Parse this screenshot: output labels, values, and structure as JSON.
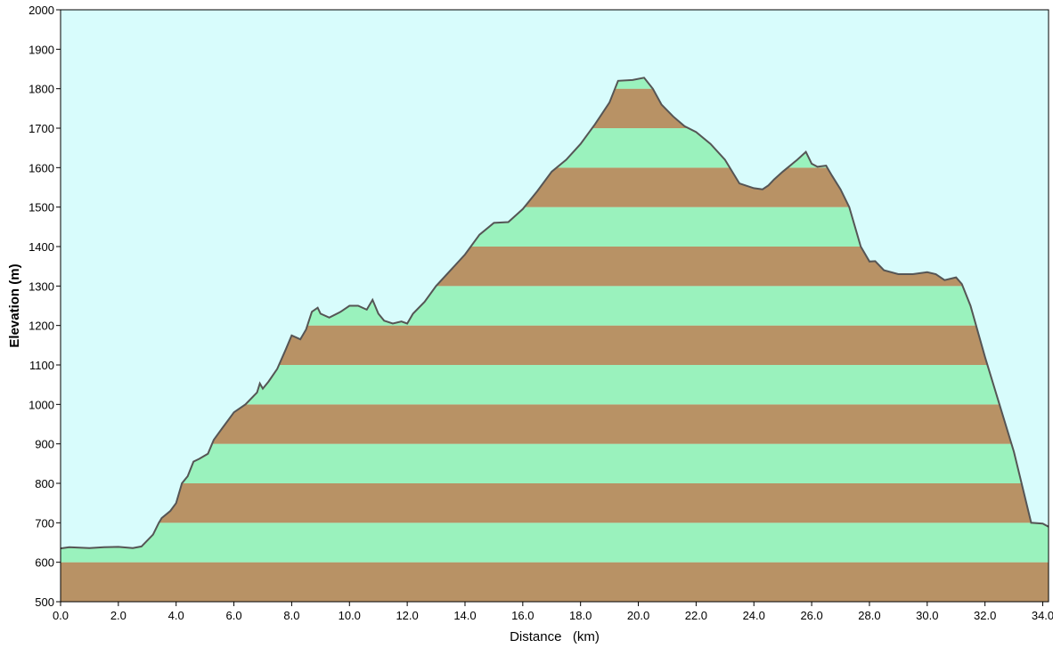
{
  "chart_data": {
    "type": "area",
    "title": "",
    "xlabel": "Distance   (km)",
    "ylabel": "Elevation (m)",
    "xlim": [
      0,
      34.2
    ],
    "ylim": [
      500,
      2000
    ],
    "x_ticks": [
      "0.0",
      "2.0",
      "4.0",
      "6.0",
      "8.0",
      "10.0",
      "12.0",
      "14.0",
      "16.0",
      "18.0",
      "20.0",
      "22.0",
      "24.0",
      "26.0",
      "28.0",
      "30.0",
      "32.0",
      "34.0"
    ],
    "y_ticks": [
      "500",
      "600",
      "700",
      "800",
      "900",
      "1000",
      "1100",
      "1200",
      "1300",
      "1400",
      "1500",
      "1600",
      "1700",
      "1800",
      "1900",
      "2000"
    ],
    "grid": false,
    "colors": {
      "sky": "#d8fcfc",
      "band_brown": "#b89265",
      "band_green": "#9af2bd",
      "profile_line": "#555555"
    },
    "band_size_m": 100,
    "profile": {
      "name": "",
      "x": [
        0,
        0.3,
        1.0,
        1.5,
        2.0,
        2.5,
        2.8,
        3.2,
        3.4,
        3.5,
        3.8,
        4.0,
        4.2,
        4.4,
        4.6,
        4.8,
        5.1,
        5.3,
        5.6,
        6.0,
        6.4,
        6.8,
        6.9,
        7.0,
        7.2,
        7.5,
        7.8,
        8.0,
        8.3,
        8.5,
        8.7,
        8.9,
        9.0,
        9.3,
        9.7,
        10.0,
        10.3,
        10.6,
        10.8,
        11.0,
        11.2,
        11.5,
        11.8,
        12.0,
        12.2,
        12.6,
        13.0,
        13.5,
        14.0,
        14.5,
        15.0,
        15.5,
        16.0,
        16.5,
        17.0,
        17.5,
        18.0,
        18.5,
        19.0,
        19.3,
        19.8,
        20.2,
        20.5,
        20.8,
        21.2,
        21.6,
        22.0,
        22.5,
        23.0,
        23.5,
        24.0,
        24.3,
        24.5,
        24.7,
        25.0,
        25.5,
        25.8,
        26.0,
        26.2,
        26.5,
        26.7,
        27.0,
        27.3,
        27.7,
        28.0,
        28.2,
        28.5,
        29.0,
        29.5,
        30.0,
        30.3,
        30.6,
        31.0,
        31.2,
        31.5,
        32.0,
        32.5,
        33.0,
        33.6,
        34.0,
        34.2
      ],
      "y": [
        635,
        638,
        636,
        638,
        639,
        636,
        640,
        670,
        700,
        712,
        730,
        750,
        800,
        818,
        855,
        862,
        875,
        910,
        940,
        980,
        1000,
        1030,
        1053,
        1040,
        1058,
        1090,
        1140,
        1175,
        1165,
        1190,
        1235,
        1245,
        1230,
        1220,
        1235,
        1250,
        1250,
        1240,
        1265,
        1230,
        1212,
        1205,
        1210,
        1205,
        1230,
        1260,
        1300,
        1340,
        1380,
        1430,
        1460,
        1462,
        1495,
        1540,
        1590,
        1620,
        1660,
        1710,
        1765,
        1820,
        1822,
        1828,
        1800,
        1760,
        1730,
        1705,
        1690,
        1660,
        1620,
        1560,
        1548,
        1545,
        1555,
        1570,
        1590,
        1620,
        1640,
        1610,
        1602,
        1605,
        1580,
        1545,
        1500,
        1400,
        1362,
        1363,
        1340,
        1330,
        1330,
        1335,
        1330,
        1315,
        1322,
        1305,
        1250,
        1120,
        1000,
        880,
        700,
        698,
        690
      ]
    }
  }
}
